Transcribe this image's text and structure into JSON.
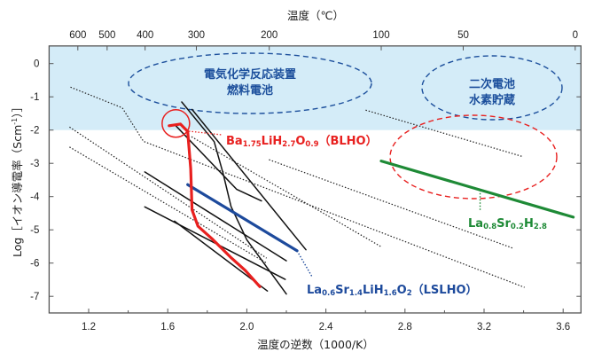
{
  "chart_data": {
    "type": "line",
    "top_axis_title": "温度（℃）",
    "top_ticks_celsius": [
      600,
      500,
      400,
      300,
      200,
      100,
      50,
      0
    ],
    "xlabel": "温度の逆数（1000/K）",
    "ylabel_parts": [
      "Log［イオン導電率（Scm",
      "-1",
      "）］"
    ],
    "xlim": [
      1.0,
      3.69
    ],
    "ylim": [
      -7.5,
      0.53
    ],
    "xticks": [
      "1.2",
      "1.6",
      "2.0",
      "2.4",
      "2.8",
      "3.2",
      "3.6"
    ],
    "yticks": [
      "0",
      "-1",
      "-2",
      "-3",
      "-4",
      "-5",
      "-6",
      "-7"
    ],
    "highlight_band": {
      "from": -2,
      "to": 0.53,
      "color": "#d4ecf8"
    },
    "regions": [
      {
        "lines": [
          "電気化学反応装置",
          "燃料電池"
        ],
        "color": "#1c4f9c"
      },
      {
        "lines": [
          "二次電池",
          "水素貯蔵"
        ],
        "color": "#1c4f9c"
      }
    ],
    "series": [
      {
        "style": "dotted",
        "color": "#222222",
        "points": [
          [
            1.108,
            -0.71
          ],
          [
            1.37,
            -1.33
          ],
          [
            1.477,
            -2.34
          ],
          [
            3.405,
            -6.73
          ]
        ]
      },
      {
        "style": "dotted",
        "color": "#222222",
        "points": [
          [
            1.103,
            -1.91
          ],
          [
            2.1,
            -5.85
          ]
        ]
      },
      {
        "style": "dotted",
        "color": "#222222",
        "points": [
          [
            1.103,
            -2.51
          ],
          [
            2.1,
            -6.0
          ]
        ]
      },
      {
        "style": "dotted",
        "color": "#222222",
        "points": [
          [
            1.72,
            -2.2
          ],
          [
            2.68,
            -5.51
          ]
        ]
      },
      {
        "style": "dotted",
        "color": "#222222",
        "points": [
          [
            2.112,
            -2.89
          ],
          [
            3.345,
            -5.55
          ]
        ]
      },
      {
        "style": "dotted",
        "color": "#222222",
        "points": [
          [
            2.601,
            -1.4
          ],
          [
            3.397,
            -2.8
          ]
        ]
      },
      {
        "style": "solid",
        "color": "#111111",
        "points": [
          [
            1.641,
            -1.87
          ],
          [
            1.948,
            -3.78
          ],
          [
            2.074,
            -4.13
          ]
        ]
      },
      {
        "style": "solid",
        "color": "#111111",
        "points": [
          [
            1.671,
            -1.155
          ],
          [
            1.835,
            -2.35
          ],
          [
            1.88,
            -3.3
          ],
          [
            1.92,
            -4.3
          ],
          [
            2.0,
            -5.3
          ],
          [
            2.2,
            -6.93
          ]
        ]
      },
      {
        "style": "solid",
        "color": "#111111",
        "points": [
          [
            1.723,
            -1.38
          ],
          [
            2.299,
            -5.6
          ]
        ]
      },
      {
        "style": "solid",
        "color": "#111111",
        "points": [
          [
            1.484,
            -3.26
          ],
          [
            2.2,
            -5.93
          ]
        ]
      },
      {
        "style": "solid",
        "color": "#111111",
        "points": [
          [
            1.484,
            -4.31
          ],
          [
            2.194,
            -6.49
          ]
        ]
      },
      {
        "style": "solid",
        "color": "#111111",
        "points": [
          [
            1.634,
            -4.74
          ],
          [
            2.104,
            -6.84
          ]
        ]
      },
      {
        "style": "bold",
        "color": "#1d4a9c",
        "label_ref": "lslho",
        "points": [
          [
            1.701,
            -3.64
          ],
          [
            2.254,
            -5.63
          ]
        ]
      },
      {
        "style": "bold",
        "color": "#e8201f",
        "label_ref": "blho",
        "points": [
          [
            1.607,
            -1.87
          ],
          [
            1.664,
            -1.82
          ],
          [
            1.701,
            -2.04
          ],
          [
            1.716,
            -3.156
          ],
          [
            1.723,
            -4.4
          ],
          [
            1.753,
            -4.89
          ],
          [
            1.828,
            -5.29
          ],
          [
            1.917,
            -5.82
          ],
          [
            1.992,
            -6.22
          ],
          [
            2.066,
            -6.71
          ]
        ]
      },
      {
        "style": "bold",
        "color": "#1e8a36",
        "label_ref": "lasrh",
        "points": [
          [
            2.68,
            -2.93
          ],
          [
            3.651,
            -4.62
          ]
        ]
      }
    ],
    "labels": {
      "blho": {
        "color": "#e8201f",
        "parts": [
          {
            "t": "Ba"
          },
          {
            "t": "1.75",
            "sub": true
          },
          {
            "t": "LiH"
          },
          {
            "t": "2.7",
            "sub": true
          },
          {
            "t": "O"
          },
          {
            "t": "0.9",
            "sub": true
          },
          {
            "t": "（BLHO）"
          }
        ]
      },
      "lslho": {
        "color": "#1d4a9c",
        "parts": [
          {
            "t": "La"
          },
          {
            "t": "0.6",
            "sub": true
          },
          {
            "t": "Sr"
          },
          {
            "t": "1.4",
            "sub": true
          },
          {
            "t": "LiH"
          },
          {
            "t": "1.6",
            "sub": true
          },
          {
            "t": "O"
          },
          {
            "t": "2",
            "sub": true
          },
          {
            "t": "（LSLHO）"
          }
        ]
      },
      "lasrh": {
        "color": "#1e8a36",
        "parts": [
          {
            "t": "La"
          },
          {
            "t": "0.8",
            "sub": true
          },
          {
            "t": "Sr"
          },
          {
            "t": "0.2",
            "sub": true
          },
          {
            "t": "H"
          },
          {
            "t": "2.8",
            "sub": true
          }
        ]
      }
    }
  }
}
